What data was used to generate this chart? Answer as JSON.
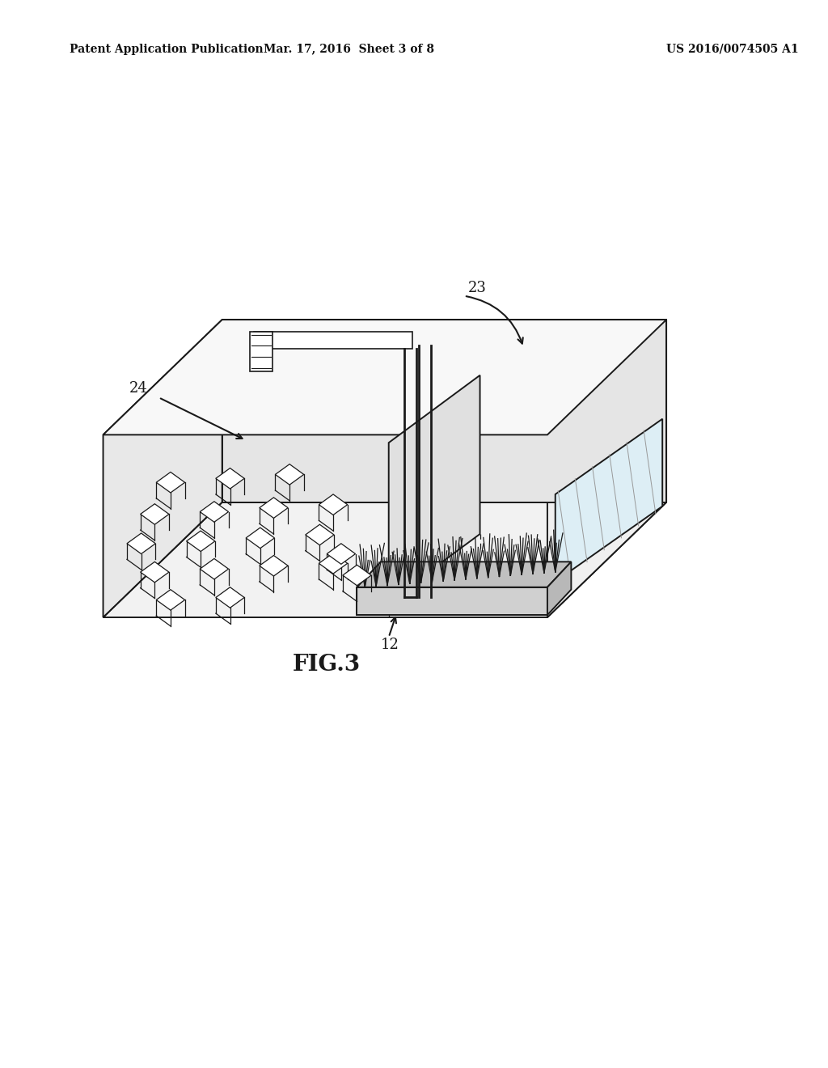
{
  "background_color": "#ffffff",
  "header_left": "Patent Application Publication",
  "header_mid": "Mar. 17, 2016  Sheet 3 of 8",
  "header_right": "US 2016/0074505 A1",
  "figure_caption": "FIG.3",
  "label_23": "23",
  "label_24": "24",
  "label_12": "12",
  "color_main": "#1a1a1a",
  "color_face_floor": "#f2f2f2",
  "color_face_left": "#e8e8e8",
  "color_face_right": "#f0f0f0",
  "color_face_back": "#ececec",
  "color_face_ceil": "#f8f8f8"
}
